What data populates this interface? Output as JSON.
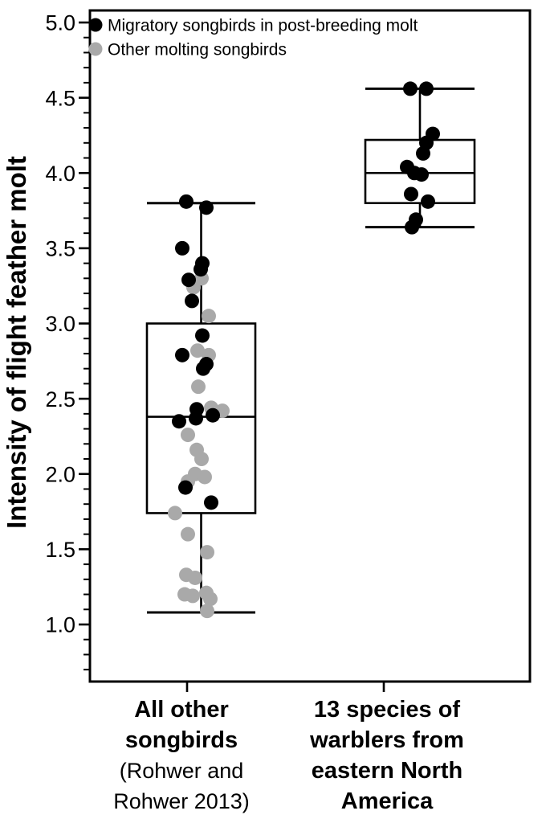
{
  "chart_data": {
    "type": "boxplot",
    "title": "",
    "xlabel": "",
    "ylabel": "Intensity of flight feather molt",
    "ylim": [
      0.6,
      5.08
    ],
    "yticks_major": [
      1.0,
      1.5,
      2.0,
      2.5,
      3.0,
      3.5,
      4.0,
      4.5,
      5.0
    ],
    "ytick_labels": [
      "1.0",
      "1.5",
      "2.0",
      "2.5",
      "3.0",
      "3.5",
      "4.0",
      "4.5",
      "5.0"
    ],
    "minor_tick_step": 0.1,
    "minor_tick_min": 0.7,
    "minor_tick_max": 4.9,
    "grid": false,
    "legend_position": "top-left-inside",
    "legend": [
      {
        "series": "migratory",
        "label": "Migratory songbirds in post-breeding molt",
        "color": "#000000"
      },
      {
        "series": "other",
        "label": "Other molting songbirds",
        "color": "#a9a9a9"
      }
    ],
    "groups": [
      {
        "id": "all-other-songbirds",
        "label_lines": [
          {
            "text": "All other",
            "bold": true
          },
          {
            "text": "songbirds",
            "bold": true
          },
          {
            "text": "(Rohwer and",
            "bold": false
          },
          {
            "text": "Rohwer 2013)",
            "bold": false
          }
        ],
        "box": {
          "whisker_low": 1.08,
          "q1": 1.74,
          "median": 2.38,
          "q3": 3.0,
          "whisker_high": 3.8
        },
        "points": [
          {
            "series": "other",
            "value": 3.3,
            "x": 251
          },
          {
            "series": "other",
            "value": 3.24,
            "x": 241
          },
          {
            "series": "other",
            "value": 3.05,
            "x": 260
          },
          {
            "series": "other",
            "value": 2.82,
            "x": 246
          },
          {
            "series": "other",
            "value": 2.79,
            "x": 260
          },
          {
            "series": "other",
            "value": 2.58,
            "x": 247
          },
          {
            "series": "other",
            "value": 2.44,
            "x": 263
          },
          {
            "series": "other",
            "value": 2.42,
            "x": 277
          },
          {
            "series": "other",
            "value": 2.26,
            "x": 234
          },
          {
            "series": "other",
            "value": 2.16,
            "x": 245
          },
          {
            "series": "other",
            "value": 2.1,
            "x": 251
          },
          {
            "series": "other",
            "value": 2.0,
            "x": 243
          },
          {
            "series": "other",
            "value": 1.98,
            "x": 255
          },
          {
            "series": "other",
            "value": 1.95,
            "x": 234
          },
          {
            "series": "other",
            "value": 1.74,
            "x": 218
          },
          {
            "series": "other",
            "value": 1.6,
            "x": 234
          },
          {
            "series": "other",
            "value": 1.48,
            "x": 258
          },
          {
            "series": "other",
            "value": 1.33,
            "x": 232
          },
          {
            "series": "other",
            "value": 1.31,
            "x": 243
          },
          {
            "series": "other",
            "value": 1.21,
            "x": 257
          },
          {
            "series": "other",
            "value": 1.2,
            "x": 230
          },
          {
            "series": "other",
            "value": 1.19,
            "x": 240
          },
          {
            "series": "other",
            "value": 1.17,
            "x": 262
          },
          {
            "series": "other",
            "value": 1.09,
            "x": 258
          },
          {
            "series": "migratory",
            "value": 3.81,
            "x": 232
          },
          {
            "series": "migratory",
            "value": 3.77,
            "x": 257
          },
          {
            "series": "migratory",
            "value": 3.5,
            "x": 227
          },
          {
            "series": "migratory",
            "value": 3.4,
            "x": 252
          },
          {
            "series": "migratory",
            "value": 3.36,
            "x": 250
          },
          {
            "series": "migratory",
            "value": 3.29,
            "x": 235
          },
          {
            "series": "migratory",
            "value": 3.15,
            "x": 239
          },
          {
            "series": "migratory",
            "value": 2.92,
            "x": 252
          },
          {
            "series": "migratory",
            "value": 2.79,
            "x": 227
          },
          {
            "series": "migratory",
            "value": 2.73,
            "x": 257
          },
          {
            "series": "migratory",
            "value": 2.7,
            "x": 253
          },
          {
            "series": "migratory",
            "value": 2.43,
            "x": 245
          },
          {
            "series": "migratory",
            "value": 2.39,
            "x": 265
          },
          {
            "series": "migratory",
            "value": 2.37,
            "x": 244
          },
          {
            "series": "migratory",
            "value": 2.35,
            "x": 223
          },
          {
            "series": "migratory",
            "value": 1.91,
            "x": 231
          },
          {
            "series": "migratory",
            "value": 1.81,
            "x": 263
          }
        ]
      },
      {
        "id": "warblers-eastern-north-america",
        "label_lines": [
          {
            "text": "13 species of",
            "bold": true
          },
          {
            "text": "warblers from",
            "bold": true
          },
          {
            "text": "eastern North",
            "bold": true
          },
          {
            "text": "America",
            "bold": true
          }
        ],
        "box": {
          "whisker_low": 3.64,
          "q1": 3.8,
          "median": 4.0,
          "q3": 4.22,
          "whisker_high": 4.56
        },
        "points": [
          {
            "series": "migratory",
            "value": 4.56,
            "x": 511
          },
          {
            "series": "migratory",
            "value": 4.56,
            "x": 531
          },
          {
            "series": "migratory",
            "value": 4.26,
            "x": 539
          },
          {
            "series": "migratory",
            "value": 4.2,
            "x": 531
          },
          {
            "series": "migratory",
            "value": 4.13,
            "x": 527
          },
          {
            "series": "migratory",
            "value": 4.04,
            "x": 507
          },
          {
            "series": "migratory",
            "value": 4.0,
            "x": 516
          },
          {
            "series": "migratory",
            "value": 3.99,
            "x": 525
          },
          {
            "series": "migratory",
            "value": 3.86,
            "x": 512
          },
          {
            "series": "migratory",
            "value": 3.81,
            "x": 533
          },
          {
            "series": "migratory",
            "value": 3.69,
            "x": 518
          },
          {
            "series": "migratory",
            "value": 3.64,
            "x": 513
          }
        ]
      }
    ]
  }
}
